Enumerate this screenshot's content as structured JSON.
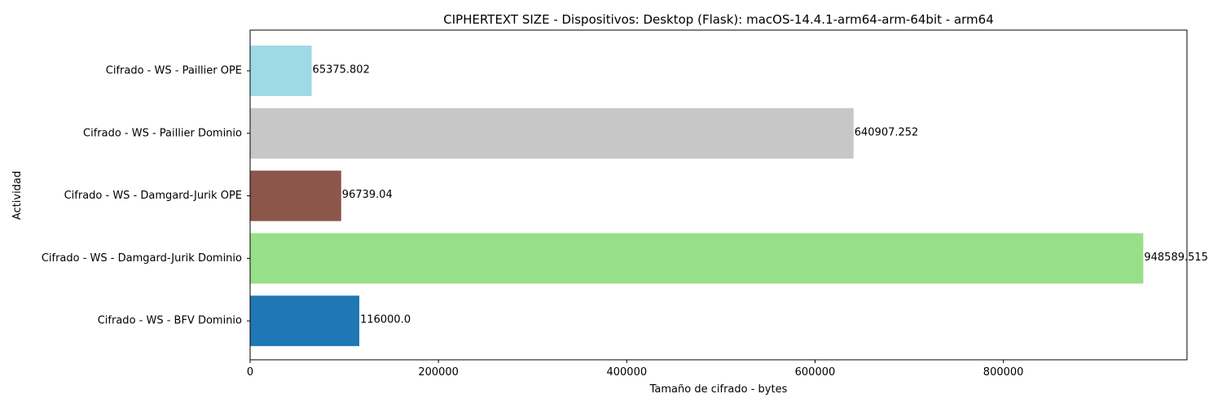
{
  "chart_data": {
    "type": "bar",
    "orientation": "horizontal",
    "title": "CIPHERTEXT SIZE - Dispositivos: Desktop (Flask): macOS-14.4.1-arm64-arm-64bit - arm64",
    "xlabel": "Tamaño de cifrado - bytes",
    "ylabel": "Actividad",
    "xlim": [
      0,
      995000
    ],
    "xticks": [
      0,
      200000,
      400000,
      600000,
      800000
    ],
    "grid": false,
    "legend": "none",
    "bars": [
      {
        "category": "Cifrado - WS - Paillier OPE",
        "value": 65375.802,
        "label": "65375.802",
        "color": "#9edae5"
      },
      {
        "category": "Cifrado - WS - Paillier Dominio",
        "value": 640907.252,
        "label": "640907.252",
        "color": "#c7c7c7"
      },
      {
        "category": "Cifrado - WS - Damgard-Jurik OPE",
        "value": 96739.04,
        "label": "96739.04",
        "color": "#8c564b"
      },
      {
        "category": "Cifrado - WS - Damgard-Jurik Dominio",
        "value": 948589.515,
        "label": "948589.515",
        "color": "#98df8a"
      },
      {
        "category": "Cifrado - WS - BFV Dominio",
        "value": 116000.0,
        "label": "116000.0",
        "color": "#1f77b4"
      }
    ]
  }
}
